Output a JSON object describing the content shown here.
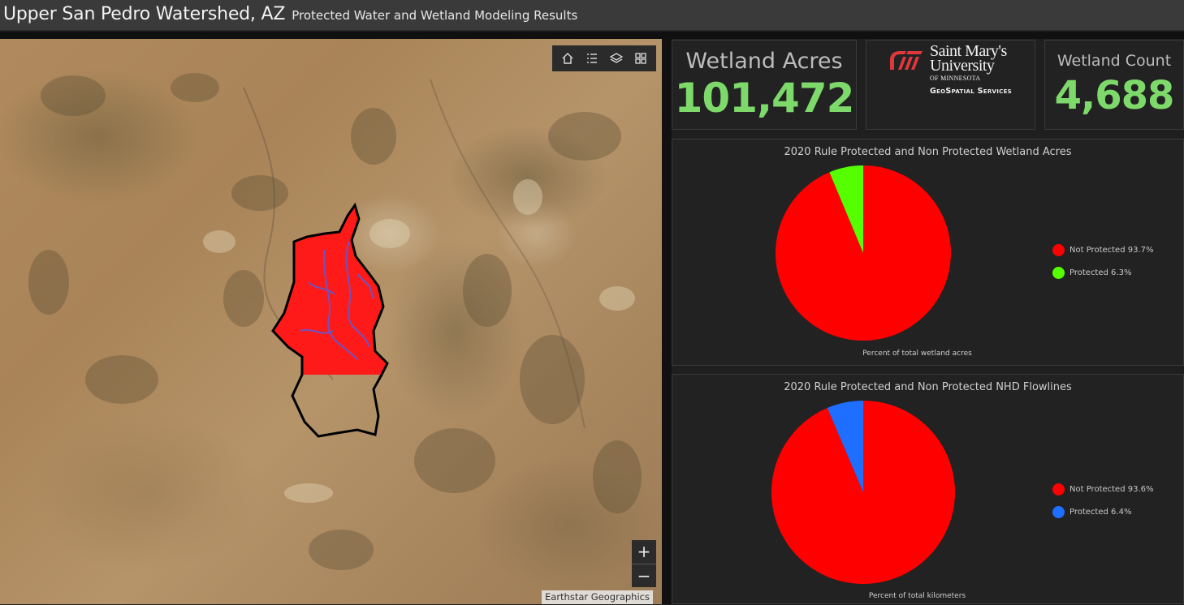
{
  "header": {
    "title": "Upper San Pedro Watershed, AZ",
    "subtitle": "Protected Water and Wetland Modeling Results"
  },
  "map": {
    "tools": [
      {
        "name": "home-icon"
      },
      {
        "name": "legend-icon"
      },
      {
        "name": "layers-icon"
      },
      {
        "name": "basemap-gallery-icon"
      }
    ],
    "zoom_in": "+",
    "zoom_out": "−",
    "attribution": "Earthstar Geographics",
    "colors": {
      "watershed_fill": "#ff1a1a",
      "flowlines": "#5b5bd6",
      "outline": "#000000"
    }
  },
  "kpi": {
    "acres": {
      "label": "Wetland Acres",
      "value": "101,472"
    },
    "count": {
      "label": "Wetland Count",
      "value": "4,688"
    },
    "value_color": "#7ed96b"
  },
  "logo": {
    "line1": "Saint Mary's",
    "line2": "University",
    "line3": "OF MINNESOTA",
    "line4": "GeoSpatial Services"
  },
  "chart_data": [
    {
      "type": "pie",
      "title": "2020 Rule Protected and Non Protected Wetland Acres",
      "footer": "Percent of total wetland acres",
      "slices": [
        {
          "label": "Not Protected",
          "value": 93.7,
          "display": "93.7%",
          "color": "#ff0000"
        },
        {
          "label": "Protected",
          "value": 6.3,
          "display": "6.3%",
          "color": "#55ff00"
        }
      ],
      "legend_position": "right"
    },
    {
      "type": "pie",
      "title": "2020 Rule Protected and Non Protected NHD Flowlines",
      "footer": "Percent of total kilometers",
      "slices": [
        {
          "label": "Not Protected",
          "value": 93.6,
          "display": "93.6%",
          "color": "#ff0000"
        },
        {
          "label": "Protected",
          "value": 6.4,
          "display": "6.4%",
          "color": "#1e6eff"
        }
      ],
      "legend_position": "right"
    }
  ]
}
